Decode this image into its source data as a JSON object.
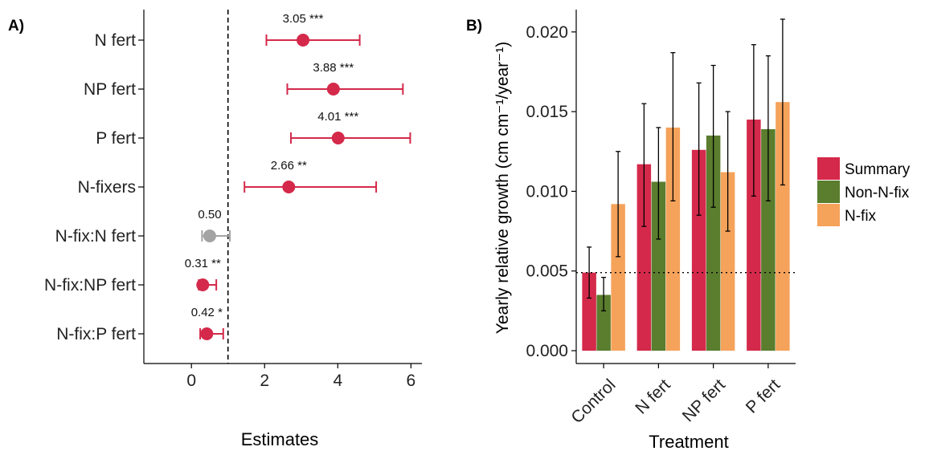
{
  "panel_a": {
    "letter": "A)",
    "xlabel": "Estimates"
  },
  "panel_b": {
    "letter": "B)",
    "xlabel": "Treatment",
    "ylabel": "Yearly relative growth (cm cm⁻¹/year⁻¹)"
  },
  "colors": {
    "significant": "#d4294a",
    "nonsignificant": "#a3a3a3",
    "summary": "#d4294a",
    "non_n_fix": "#5a7d2e",
    "n_fix": "#f5a25b"
  },
  "chart_data": [
    {
      "type": "scatter",
      "title": "",
      "xlabel": "Estimates",
      "ylabel": "",
      "xlim": [
        -1.3,
        6.3
      ],
      "xticks": [
        "0",
        "2",
        "4",
        "6"
      ],
      "xtick_values": [
        0,
        2,
        4,
        6
      ],
      "reference_line": 1,
      "grid": false,
      "categories": [
        "N fert",
        "NP fert",
        "P fert",
        "N-fixers",
        "N-fix:N fert",
        "N-fix:NP fert",
        "N-fix:P fert"
      ],
      "estimates": [
        3.05,
        3.88,
        4.01,
        2.66,
        0.5,
        0.31,
        0.42
      ],
      "ci_low": [
        2.05,
        2.62,
        2.72,
        1.45,
        0.29,
        0.2,
        0.24
      ],
      "ci_high": [
        4.6,
        5.78,
        5.98,
        5.05,
        1.05,
        0.68,
        0.87
      ],
      "labels": [
        "3.05 ***",
        "3.88 ***",
        "4.01 ***",
        "2.66 **",
        "0.50",
        "0.31 **",
        "0.42 *"
      ],
      "significant": [
        true,
        true,
        true,
        true,
        false,
        true,
        true
      ]
    },
    {
      "type": "bar",
      "title": "",
      "xlabel": "Treatment",
      "ylabel": "Yearly relative growth (cm cm⁻¹/year⁻¹)",
      "ylim": [
        0,
        0.0214
      ],
      "yticks": [
        "0.000",
        "0.005",
        "0.010",
        "0.015",
        "0.020"
      ],
      "ytick_values": [
        0,
        0.005,
        0.01,
        0.015,
        0.02
      ],
      "reference_line": 0.0049,
      "grid": false,
      "legend_position": "right",
      "categories": [
        "Control",
        "N fert",
        "NP fert",
        "P fert"
      ],
      "series": [
        {
          "name": "Summary",
          "color": "#d4294a",
          "values": [
            0.0049,
            0.0117,
            0.0126,
            0.0145
          ],
          "err_low": [
            0.0033,
            0.0078,
            0.0085,
            0.0097
          ],
          "err_high": [
            0.0065,
            0.0155,
            0.0168,
            0.0192
          ]
        },
        {
          "name": "Non-N-fix",
          "color": "#5a7d2e",
          "values": [
            0.0035,
            0.0106,
            0.0135,
            0.0139
          ],
          "err_low": [
            0.0025,
            0.007,
            0.009,
            0.0094
          ],
          "err_high": [
            0.0046,
            0.014,
            0.0179,
            0.0185
          ]
        },
        {
          "name": "N-fix",
          "color": "#f5a25b",
          "values": [
            0.0092,
            0.014,
            0.0112,
            0.0156
          ],
          "err_low": [
            0.0059,
            0.0094,
            0.0075,
            0.0104
          ],
          "err_high": [
            0.0125,
            0.0187,
            0.015,
            0.0208
          ]
        }
      ]
    }
  ]
}
